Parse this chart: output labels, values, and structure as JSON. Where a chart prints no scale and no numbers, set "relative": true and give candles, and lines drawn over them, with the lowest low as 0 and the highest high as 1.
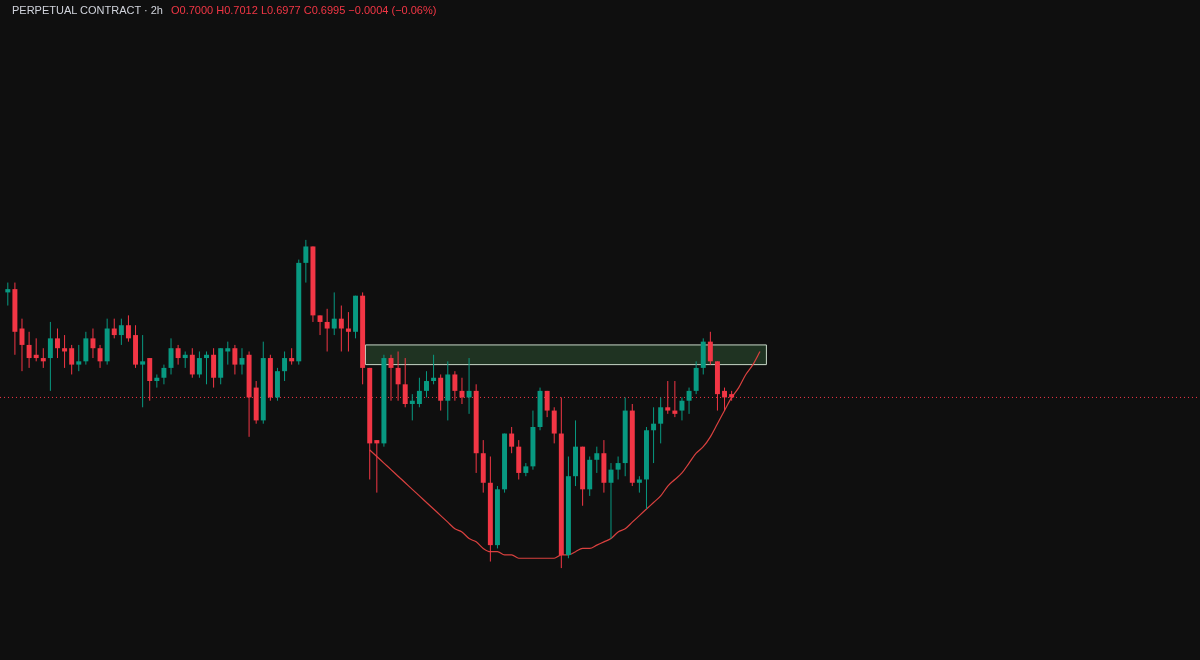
{
  "chart_data": {
    "type": "candlestick",
    "title": "PERPETUAL CONTRACT · 2h",
    "subtitle": "O0.7000 H0.7012 L0.6977 C0.6995 −0.0004 (−0.06%)",
    "relative": true,
    "legend": false,
    "categories": [
      null,
      null,
      null,
      null,
      null,
      null,
      null,
      null,
      null,
      null,
      null,
      null,
      null,
      null,
      null,
      null,
      null,
      null,
      null,
      null,
      null,
      null,
      null,
      null,
      null,
      null,
      null,
      null,
      null,
      null,
      null,
      null,
      null,
      null,
      null,
      null,
      null,
      null,
      null,
      null,
      null,
      null,
      null,
      null,
      null,
      null,
      null,
      null,
      null,
      null,
      null,
      null,
      null,
      null,
      null,
      null,
      null,
      null,
      null,
      null,
      null,
      null,
      null,
      null,
      null,
      null,
      null,
      null,
      null,
      null,
      null,
      null,
      null,
      null,
      null,
      null,
      null,
      null,
      null,
      null,
      null,
      null,
      null,
      null,
      null,
      null,
      null,
      null,
      null,
      null,
      null,
      null,
      null,
      null,
      null,
      null,
      null,
      null,
      null,
      null,
      null,
      null,
      null,
      null,
      null,
      null,
      null
    ],
    "ohlc": [
      [
        0.84,
        0.87,
        0.8,
        0.85
      ],
      [
        0.85,
        0.87,
        0.65,
        0.72
      ],
      [
        0.73,
        0.76,
        0.6,
        0.68
      ],
      [
        0.68,
        0.72,
        0.61,
        0.64
      ],
      [
        0.65,
        0.7,
        0.63,
        0.64
      ],
      [
        0.64,
        0.67,
        0.61,
        0.63
      ],
      [
        0.64,
        0.75,
        0.54,
        0.7
      ],
      [
        0.7,
        0.73,
        0.64,
        0.67
      ],
      [
        0.67,
        0.71,
        0.61,
        0.66
      ],
      [
        0.67,
        0.68,
        0.59,
        0.62
      ],
      [
        0.62,
        0.68,
        0.6,
        0.63
      ],
      [
        0.63,
        0.72,
        0.62,
        0.7
      ],
      [
        0.7,
        0.73,
        0.64,
        0.67
      ],
      [
        0.67,
        0.68,
        0.61,
        0.63
      ],
      [
        0.63,
        0.76,
        0.62,
        0.73
      ],
      [
        0.73,
        0.76,
        0.7,
        0.71
      ],
      [
        0.71,
        0.76,
        0.68,
        0.74
      ],
      [
        0.74,
        0.77,
        0.69,
        0.7
      ],
      [
        0.71,
        0.74,
        0.61,
        0.62
      ],
      [
        0.62,
        0.71,
        0.49,
        0.63
      ],
      [
        0.64,
        0.64,
        0.51,
        0.57
      ],
      [
        0.57,
        0.59,
        0.55,
        0.58
      ],
      [
        0.58,
        0.62,
        0.56,
        0.61
      ],
      [
        0.61,
        0.7,
        0.59,
        0.67
      ],
      [
        0.67,
        0.68,
        0.62,
        0.64
      ],
      [
        0.64,
        0.66,
        0.61,
        0.65
      ],
      [
        0.65,
        0.67,
        0.58,
        0.59
      ],
      [
        0.59,
        0.66,
        0.58,
        0.64
      ],
      [
        0.64,
        0.66,
        0.56,
        0.65
      ],
      [
        0.65,
        0.67,
        0.55,
        0.58
      ],
      [
        0.58,
        0.67,
        0.56,
        0.67
      ],
      [
        0.66,
        0.69,
        0.62,
        0.67
      ],
      [
        0.67,
        0.68,
        0.59,
        0.62
      ],
      [
        0.62,
        0.67,
        0.59,
        0.64
      ],
      [
        0.65,
        0.66,
        0.4,
        0.52
      ],
      [
        0.55,
        0.57,
        0.44,
        0.45
      ],
      [
        0.45,
        0.69,
        0.44,
        0.64
      ],
      [
        0.64,
        0.65,
        0.51,
        0.52
      ],
      [
        0.52,
        0.61,
        0.51,
        0.6
      ],
      [
        0.6,
        0.66,
        0.57,
        0.64
      ],
      [
        0.64,
        0.67,
        0.62,
        0.63
      ],
      [
        0.63,
        0.94,
        0.62,
        0.93
      ],
      [
        0.93,
        1.0,
        0.87,
        0.98
      ],
      [
        0.98,
        0.98,
        0.75,
        0.77
      ],
      [
        0.77,
        0.77,
        0.71,
        0.75
      ],
      [
        0.75,
        0.79,
        0.66,
        0.73
      ],
      [
        0.73,
        0.84,
        0.71,
        0.76
      ],
      [
        0.76,
        0.8,
        0.66,
        0.73
      ],
      [
        0.73,
        0.78,
        0.66,
        0.72
      ],
      [
        0.72,
        0.83,
        0.7,
        0.83
      ],
      [
        0.83,
        0.84,
        0.56,
        0.61
      ],
      [
        0.61,
        0.61,
        0.27,
        0.38
      ],
      [
        0.39,
        0.39,
        0.23,
        0.38
      ],
      [
        0.38,
        0.65,
        0.37,
        0.64
      ],
      [
        0.64,
        0.65,
        0.51,
        0.61
      ],
      [
        0.61,
        0.66,
        0.51,
        0.56
      ],
      [
        0.56,
        0.64,
        0.49,
        0.5
      ],
      [
        0.5,
        0.53,
        0.45,
        0.51
      ],
      [
        0.5,
        0.58,
        0.49,
        0.54
      ],
      [
        0.54,
        0.6,
        0.52,
        0.57
      ],
      [
        0.57,
        0.65,
        0.56,
        0.58
      ],
      [
        0.58,
        0.59,
        0.48,
        0.51
      ],
      [
        0.51,
        0.63,
        0.45,
        0.59
      ],
      [
        0.59,
        0.6,
        0.51,
        0.54
      ],
      [
        0.54,
        0.58,
        0.5,
        0.52
      ],
      [
        0.52,
        0.64,
        0.47,
        0.54
      ],
      [
        0.54,
        0.56,
        0.29,
        0.35
      ],
      [
        0.35,
        0.39,
        0.23,
        0.26
      ],
      [
        0.26,
        0.34,
        0.02,
        0.07
      ],
      [
        0.07,
        0.25,
        0.06,
        0.24
      ],
      [
        0.24,
        0.41,
        0.23,
        0.41
      ],
      [
        0.41,
        0.43,
        0.35,
        0.37
      ],
      [
        0.37,
        0.39,
        0.27,
        0.29
      ],
      [
        0.29,
        0.32,
        0.28,
        0.31
      ],
      [
        0.31,
        0.48,
        0.3,
        0.43
      ],
      [
        0.43,
        0.55,
        0.42,
        0.54
      ],
      [
        0.54,
        0.54,
        0.46,
        0.48
      ],
      [
        0.48,
        0.49,
        0.38,
        0.41
      ],
      [
        0.41,
        0.52,
        0.0,
        0.04
      ],
      [
        0.04,
        0.34,
        0.03,
        0.28
      ],
      [
        0.28,
        0.45,
        0.25,
        0.37
      ],
      [
        0.37,
        0.37,
        0.19,
        0.24
      ],
      [
        0.24,
        0.34,
        0.22,
        0.33
      ],
      [
        0.33,
        0.37,
        0.29,
        0.35
      ],
      [
        0.35,
        0.39,
        0.23,
        0.26
      ],
      [
        0.26,
        0.32,
        0.09,
        0.3
      ],
      [
        0.3,
        0.34,
        0.27,
        0.32
      ],
      [
        0.32,
        0.52,
        0.28,
        0.48
      ],
      [
        0.48,
        0.5,
        0.25,
        0.26
      ],
      [
        0.26,
        0.28,
        0.23,
        0.27
      ],
      [
        0.27,
        0.43,
        0.18,
        0.42
      ],
      [
        0.42,
        0.49,
        0.32,
        0.44
      ],
      [
        0.44,
        0.52,
        0.38,
        0.49
      ],
      [
        0.49,
        0.57,
        0.47,
        0.48
      ],
      [
        0.48,
        0.57,
        0.46,
        0.47
      ],
      [
        0.48,
        0.52,
        0.45,
        0.51
      ],
      [
        0.51,
        0.55,
        0.47,
        0.54
      ],
      [
        0.54,
        0.63,
        0.53,
        0.61
      ],
      [
        0.61,
        0.7,
        0.59,
        0.69
      ],
      [
        0.69,
        0.72,
        0.62,
        0.63
      ],
      [
        0.63,
        0.63,
        0.48,
        0.53
      ],
      [
        0.54,
        0.55,
        0.48,
        0.52
      ],
      [
        0.53,
        0.54,
        0.51,
        0.52
      ],
      null,
      null,
      null,
      null
    ],
    "colors": [
      "#089981",
      "#f23645",
      "#f23645",
      "#f23645",
      "#f23645",
      "#f23645",
      "#089981",
      "#f23645",
      "#f23645",
      "#f23645",
      "#089981",
      "#089981",
      "#f23645",
      "#f23645",
      "#089981",
      "#f23645",
      "#089981",
      "#f23645",
      "#f23645",
      "#089981",
      "#f23645",
      "#089981",
      "#089981",
      "#089981",
      "#f23645",
      "#089981",
      "#f23645",
      "#089981",
      "#089981",
      "#f23645",
      "#089981",
      "#089981",
      "#f23645",
      "#089981",
      "#f23645",
      "#f23645",
      "#089981",
      "#f23645",
      "#089981",
      "#089981",
      "#f23645",
      "#089981",
      "#089981",
      "#f23645",
      "#f23645",
      "#f23645",
      "#089981",
      "#f23645",
      "#f23645",
      "#089981",
      "#f23645",
      "#f23645",
      "#f23645",
      "#089981",
      "#f23645",
      "#f23645",
      "#f23645",
      "#089981",
      "#089981",
      "#089981",
      "#089981",
      "#f23645",
      "#089981",
      "#f23645",
      "#f23645",
      "#089981",
      "#f23645",
      "#f23645",
      "#f23645",
      "#089981",
      "#089981",
      "#f23645",
      "#f23645",
      "#089981",
      "#089981",
      "#089981",
      "#f23645",
      "#f23645",
      "#f23645",
      "#089981",
      "#089981",
      "#f23645",
      "#089981",
      "#089981",
      "#f23645",
      "#089981",
      "#089981",
      "#089981",
      "#f23645",
      "#089981",
      "#089981",
      "#089981",
      "#089981",
      "#f23645",
      "#f23645",
      "#089981",
      "#089981",
      "#089981",
      "#089981",
      "#f23645",
      "#f23645",
      "#f23645",
      "#f23645",
      null,
      null,
      null,
      null
    ],
    "series": [
      {
        "type": "line",
        "color": "#d9413f",
        "values": [
          null,
          null,
          null,
          null,
          null,
          null,
          null,
          null,
          null,
          null,
          null,
          null,
          null,
          null,
          null,
          null,
          null,
          null,
          null,
          null,
          null,
          null,
          null,
          null,
          null,
          null,
          null,
          null,
          null,
          null,
          null,
          null,
          null,
          null,
          null,
          null,
          null,
          null,
          null,
          null,
          null,
          null,
          null,
          null,
          null,
          null,
          null,
          null,
          null,
          null,
          null,
          0.36,
          0.34,
          0.32,
          0.3,
          0.28,
          0.26,
          0.24,
          0.22,
          0.2,
          0.18,
          0.16,
          0.14,
          0.12,
          0.11,
          0.09,
          0.08,
          0.06,
          0.05,
          0.05,
          0.04,
          0.04,
          0.03,
          0.03,
          0.03,
          0.03,
          0.03,
          0.03,
          0.04,
          0.04,
          0.05,
          0.06,
          0.06,
          0.07,
          0.08,
          0.09,
          0.11,
          0.12,
          0.14,
          0.16,
          0.18,
          0.2,
          0.22,
          0.25,
          0.27,
          0.29,
          0.32,
          0.35,
          0.37,
          0.4,
          0.44,
          0.48,
          0.52,
          0.55,
          0.59,
          0.62,
          0.66
        ]
      }
    ],
    "bands": [
      {
        "axis": "y",
        "from": 0.62,
        "to": 0.68,
        "color": "#1f3322"
      }
    ],
    "ref_lines": [
      {
        "axis": "y",
        "value": 0.52,
        "color": "#f23645",
        "line_style": "dotted"
      }
    ]
  }
}
